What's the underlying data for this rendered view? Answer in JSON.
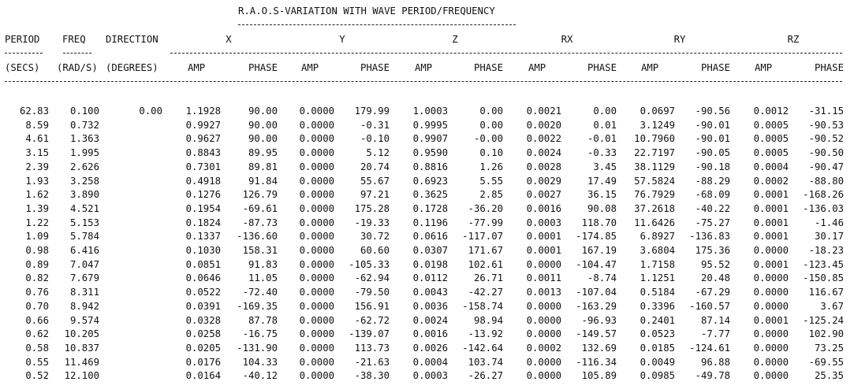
{
  "report": {
    "title": "R.A.O.S-VARIATION WITH WAVE PERIOD/FREQUENCY",
    "title_underline": "------------------------------------------",
    "headers_top": [
      "PERIOD",
      "FREQ",
      "DIRECTION",
      "X",
      "Y",
      "Z",
      "RX",
      "RY",
      "RZ"
    ],
    "headers_top_underline": [
      "------",
      "-----"
    ],
    "headers_units": [
      "(SECS)",
      "(RAD/S)",
      "(DEGREES)"
    ],
    "amp_label": "AMP",
    "phase_label": "PHASE",
    "direction_value": "0.00",
    "rows": [
      [
        "62.83",
        "0.100",
        "1.1928",
        "90.00",
        "0.0000",
        "179.99",
        "1.0003",
        "0.00",
        "0.0021",
        "0.00",
        "0.0697",
        "-90.56",
        "0.0012",
        "-31.15"
      ],
      [
        "8.59",
        "0.732",
        "0.9927",
        "90.00",
        "0.0000",
        "-0.31",
        "0.9995",
        "0.00",
        "0.0020",
        "0.01",
        "3.1249",
        "-90.01",
        "0.0005",
        "-90.53"
      ],
      [
        "4.61",
        "1.363",
        "0.9627",
        "90.00",
        "0.0000",
        "-0.10",
        "0.9907",
        "-0.00",
        "0.0022",
        "-0.01",
        "10.7960",
        "-90.01",
        "0.0005",
        "-90.52"
      ],
      [
        "3.15",
        "1.995",
        "0.8843",
        "89.95",
        "0.0000",
        "5.12",
        "0.9590",
        "0.10",
        "0.0024",
        "-0.33",
        "22.7197",
        "-90.05",
        "0.0005",
        "-90.50"
      ],
      [
        "2.39",
        "2.626",
        "0.7301",
        "89.81",
        "0.0000",
        "20.74",
        "0.8816",
        "1.26",
        "0.0028",
        "3.45",
        "38.1129",
        "-90.18",
        "0.0004",
        "-90.47"
      ],
      [
        "1.93",
        "3.258",
        "0.4918",
        "91.84",
        "0.0000",
        "55.67",
        "0.6923",
        "5.55",
        "0.0029",
        "17.49",
        "57.5824",
        "-88.29",
        "0.0002",
        "-88.80"
      ],
      [
        "1.62",
        "3.890",
        "0.1276",
        "126.79",
        "0.0000",
        "97.21",
        "0.3625",
        "2.85",
        "0.0027",
        "36.15",
        "76.7929",
        "-68.09",
        "0.0001",
        "-168.26"
      ],
      [
        "1.39",
        "4.521",
        "0.1954",
        "-69.61",
        "0.0000",
        "175.28",
        "0.1728",
        "-36.20",
        "0.0016",
        "90.08",
        "37.2618",
        "-40.22",
        "0.0001",
        "-136.03"
      ],
      [
        "1.22",
        "5.153",
        "0.1824",
        "-87.73",
        "0.0000",
        "-19.33",
        "0.1196",
        "-77.99",
        "0.0003",
        "118.70",
        "11.6426",
        "-75.27",
        "0.0001",
        "-1.46"
      ],
      [
        "1.09",
        "5.784",
        "0.1337",
        "-136.60",
        "0.0000",
        "30.72",
        "0.0616",
        "-117.07",
        "0.0001",
        "-174.85",
        "6.8927",
        "-136.83",
        "0.0001",
        "30.17"
      ],
      [
        "0.98",
        "6.416",
        "0.1030",
        "158.31",
        "0.0000",
        "60.60",
        "0.0307",
        "171.67",
        "0.0001",
        "167.19",
        "3.6804",
        "175.36",
        "0.0000",
        "-18.23"
      ],
      [
        "0.89",
        "7.047",
        "0.0851",
        "91.83",
        "0.0000",
        "-105.33",
        "0.0198",
        "102.61",
        "0.0000",
        "-104.47",
        "1.7158",
        "95.52",
        "0.0001",
        "-123.45"
      ],
      [
        "0.82",
        "7.679",
        "0.0646",
        "11.05",
        "0.0000",
        "-62.94",
        "0.0112",
        "26.71",
        "0.0011",
        "-8.74",
        "1.1251",
        "20.48",
        "0.0000",
        "-150.85"
      ],
      [
        "0.76",
        "8.311",
        "0.0522",
        "-72.40",
        "0.0000",
        "-79.50",
        "0.0043",
        "-42.27",
        "0.0013",
        "-107.04",
        "0.5184",
        "-67.29",
        "0.0000",
        "116.67"
      ],
      [
        "0.70",
        "8.942",
        "0.0391",
        "-169.35",
        "0.0000",
        "156.91",
        "0.0036",
        "-158.74",
        "0.0000",
        "-163.29",
        "0.3396",
        "-160.57",
        "0.0000",
        "3.67"
      ],
      [
        "0.66",
        "9.574",
        "0.0328",
        "87.78",
        "0.0000",
        "-62.72",
        "0.0024",
        "98.94",
        "0.0000",
        "-96.93",
        "0.2401",
        "87.14",
        "0.0001",
        "-125.24"
      ],
      [
        "0.62",
        "10.205",
        "0.0258",
        "-16.75",
        "0.0000",
        "-139.07",
        "0.0016",
        "-13.92",
        "0.0000",
        "-149.57",
        "0.0523",
        "-7.77",
        "0.0000",
        "102.90"
      ],
      [
        "0.58",
        "10.837",
        "0.0205",
        "-131.90",
        "0.0000",
        "113.73",
        "0.0026",
        "-142.64",
        "0.0002",
        "132.69",
        "0.0185",
        "-124.61",
        "0.0000",
        "73.25"
      ],
      [
        "0.55",
        "11.469",
        "0.0176",
        "104.33",
        "0.0000",
        "-21.63",
        "0.0004",
        "103.74",
        "0.0000",
        "-116.34",
        "0.0049",
        "96.88",
        "0.0000",
        "-69.55"
      ],
      [
        "0.52",
        "12.100",
        "0.0164",
        "-40.12",
        "0.0000",
        "-38.30",
        "0.0003",
        "-26.27",
        "0.0000",
        "105.89",
        "0.0985",
        "-49.78",
        "0.0000",
        "25.35"
      ]
    ]
  }
}
